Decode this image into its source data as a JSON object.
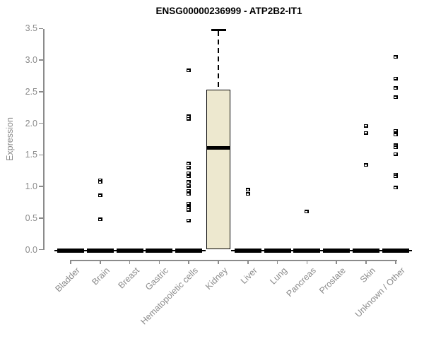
{
  "title": "ENSG00000236999 - ATP2B2-IT1",
  "colors": {
    "box_fill": "#ede8cf",
    "box_border": "#000000",
    "axis": "#8b8b8b",
    "title_text": "#000000"
  },
  "chart_data": {
    "type": "boxplot",
    "title": "ENSG00000236999 - ATP2B2-IT1",
    "xlabel": "",
    "ylabel": "Expression",
    "ylim": [
      0,
      3.5
    ],
    "ytick_labels": [
      "0.0",
      "0.5",
      "1.0",
      "1.5",
      "2.0",
      "2.5",
      "3.0",
      "3.5"
    ],
    "grid": "off",
    "legend": "none",
    "categories": [
      "Bladder",
      "Brain",
      "Breast",
      "Gastric",
      "Hematopoietic cells",
      "Kidney",
      "Liver",
      "Lung",
      "Pancreas",
      "Prostate",
      "Skin",
      "Unknown / Other"
    ],
    "boxes": [
      {
        "category": "Bladder",
        "q1": 0,
        "median": 0,
        "q3": 0,
        "whisker_low": 0,
        "whisker_high": 0,
        "outliers": []
      },
      {
        "category": "Brain",
        "q1": 0,
        "median": 0,
        "q3": 0,
        "whisker_low": 0,
        "whisker_high": 0,
        "outliers": [
          1.1,
          1.07,
          0.86,
          0.48
        ]
      },
      {
        "category": "Breast",
        "q1": 0,
        "median": 0,
        "q3": 0,
        "whisker_low": 0,
        "whisker_high": 0,
        "outliers": []
      },
      {
        "category": "Gastric",
        "q1": 0,
        "median": 0,
        "q3": 0,
        "whisker_low": 0,
        "whisker_high": 0,
        "outliers": []
      },
      {
        "category": "Hematopoietic cells",
        "q1": 0,
        "median": 0,
        "q3": 0,
        "whisker_low": 0,
        "whisker_high": 0,
        "outliers": [
          2.84,
          2.11,
          2.07,
          1.36,
          1.3,
          1.21,
          1.16,
          1.07,
          1.01,
          0.93,
          0.88,
          0.73,
          0.67,
          0.63,
          0.46
        ]
      },
      {
        "category": "Kidney",
        "q1": 0,
        "median": 1.61,
        "q3": 2.53,
        "whisker_low": 0,
        "whisker_high": 3.48,
        "outliers": []
      },
      {
        "category": "Liver",
        "q1": 0,
        "median": 0,
        "q3": 0,
        "whisker_low": 0,
        "whisker_high": 0,
        "outliers": [
          0.95,
          0.88
        ]
      },
      {
        "category": "Lung",
        "q1": 0,
        "median": 0,
        "q3": 0,
        "whisker_low": 0,
        "whisker_high": 0,
        "outliers": []
      },
      {
        "category": "Pancreas",
        "q1": 0,
        "median": 0,
        "q3": 0,
        "whisker_low": 0,
        "whisker_high": 0,
        "outliers": [
          0.6
        ]
      },
      {
        "category": "Prostate",
        "q1": 0,
        "median": 0,
        "q3": 0,
        "whisker_low": 0,
        "whisker_high": 0,
        "outliers": []
      },
      {
        "category": "Skin",
        "q1": 0,
        "median": 0,
        "q3": 0,
        "whisker_low": 0,
        "whisker_high": 0,
        "outliers": [
          1.96,
          1.85,
          1.34
        ]
      },
      {
        "category": "Unknown / Other",
        "q1": 0,
        "median": 0,
        "q3": 0,
        "whisker_low": 0,
        "whisker_high": 0,
        "outliers": [
          3.05,
          2.71,
          2.56,
          2.41,
          1.88,
          1.82,
          1.65,
          1.62,
          1.51,
          1.19,
          1.16,
          0.98
        ]
      }
    ]
  }
}
